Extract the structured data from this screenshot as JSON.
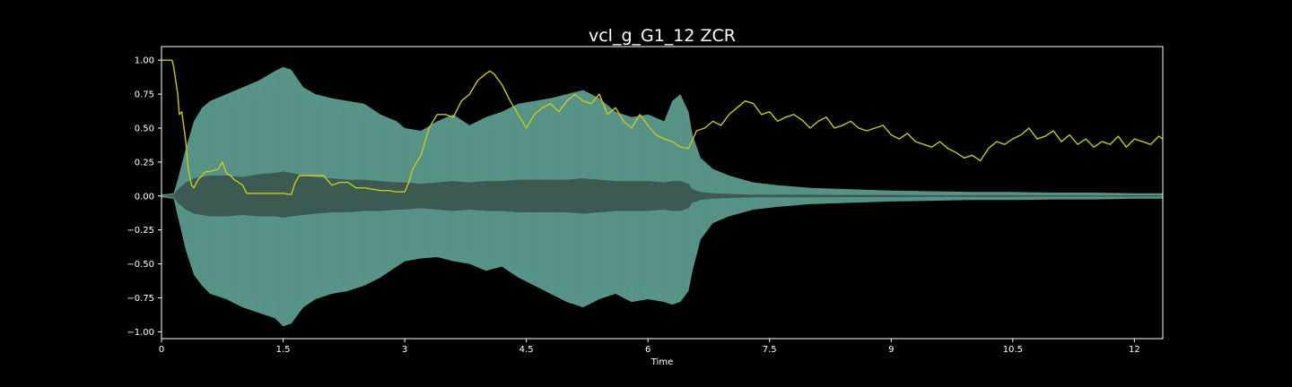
{
  "chart_data": {
    "type": "line",
    "title": "vcl_g_G1_12 ZCR",
    "xlabel": "Time",
    "ylabel": "",
    "xlim": [
      0,
      12.35
    ],
    "ylim": [
      -1.05,
      1.1
    ],
    "x_ticks": [
      0,
      1.5,
      3,
      4.5,
      6,
      7.5,
      9,
      10.5,
      12
    ],
    "x_tick_labels": [
      "0",
      "1.5",
      "3",
      "4.5",
      "6",
      "7.5",
      "9",
      "10.5",
      "12"
    ],
    "y_ticks": [
      1.0,
      0.75,
      0.5,
      0.25,
      0.0,
      -0.25,
      -0.5,
      -0.75,
      -1.0
    ],
    "y_tick_labels": [
      "1.00",
      "0.75",
      "0.50",
      "0.25",
      "0.00",
      "−0.25",
      "−0.50",
      "−0.75",
      "−1.00"
    ],
    "grid": false,
    "colors": {
      "background": "#000000",
      "axes": "#ffffff",
      "waveform_outer": "#5e9c8f",
      "waveform_inner": "#3b5a51",
      "zcr_line": "#c8c81e"
    },
    "waveform_envelope": {
      "name": "waveform",
      "x": [
        0,
        0.15,
        0.2,
        0.3,
        0.4,
        0.5,
        0.6,
        0.8,
        1.0,
        1.2,
        1.4,
        1.5,
        1.6,
        1.75,
        1.9,
        2.1,
        2.3,
        2.5,
        2.7,
        2.9,
        3.0,
        3.2,
        3.4,
        3.6,
        3.8,
        4.0,
        4.2,
        4.4,
        4.6,
        4.8,
        5.0,
        5.2,
        5.4,
        5.6,
        5.8,
        6.0,
        6.2,
        6.3,
        6.4,
        6.5,
        6.55,
        6.65,
        6.8,
        7.0,
        7.3,
        7.6,
        8.0,
        8.5,
        9.0,
        9.5,
        10.0,
        10.5,
        11.0,
        11.5,
        12.0,
        12.35
      ],
      "upper": [
        0.01,
        0.02,
        0.12,
        0.35,
        0.55,
        0.65,
        0.7,
        0.75,
        0.8,
        0.85,
        0.92,
        0.95,
        0.93,
        0.8,
        0.75,
        0.72,
        0.7,
        0.68,
        0.6,
        0.55,
        0.5,
        0.48,
        0.55,
        0.6,
        0.52,
        0.58,
        0.62,
        0.68,
        0.7,
        0.72,
        0.75,
        0.78,
        0.72,
        0.62,
        0.58,
        0.6,
        0.55,
        0.7,
        0.75,
        0.62,
        0.45,
        0.28,
        0.2,
        0.15,
        0.1,
        0.08,
        0.06,
        0.05,
        0.04,
        0.035,
        0.03,
        0.03,
        0.025,
        0.025,
        0.02,
        0.02
      ],
      "lower": [
        -0.01,
        -0.02,
        -0.15,
        -0.4,
        -0.58,
        -0.66,
        -0.72,
        -0.76,
        -0.82,
        -0.86,
        -0.9,
        -0.96,
        -0.94,
        -0.82,
        -0.76,
        -0.72,
        -0.7,
        -0.66,
        -0.6,
        -0.52,
        -0.48,
        -0.46,
        -0.45,
        -0.48,
        -0.5,
        -0.55,
        -0.52,
        -0.6,
        -0.66,
        -0.72,
        -0.78,
        -0.82,
        -0.76,
        -0.72,
        -0.78,
        -0.76,
        -0.78,
        -0.8,
        -0.78,
        -0.7,
        -0.55,
        -0.32,
        -0.2,
        -0.15,
        -0.1,
        -0.08,
        -0.06,
        -0.05,
        -0.04,
        -0.035,
        -0.03,
        -0.03,
        -0.025,
        -0.025,
        -0.02,
        -0.02
      ],
      "inner_upper": [
        0.0,
        0.01,
        0.05,
        0.1,
        0.13,
        0.14,
        0.15,
        0.15,
        0.14,
        0.16,
        0.17,
        0.18,
        0.17,
        0.15,
        0.14,
        0.13,
        0.12,
        0.12,
        0.11,
        0.1,
        0.1,
        0.09,
        0.1,
        0.11,
        0.1,
        0.11,
        0.11,
        0.12,
        0.12,
        0.12,
        0.12,
        0.13,
        0.12,
        0.11,
        0.11,
        0.11,
        0.1,
        0.11,
        0.11,
        0.09,
        0.05,
        0.03,
        0.02,
        0.015,
        0.01,
        0.01,
        0.01,
        0.008,
        0.008,
        0.006,
        0.006,
        0.006,
        0.005,
        0.005,
        0.005,
        0.005
      ],
      "inner_lower": [
        0.0,
        -0.01,
        -0.05,
        -0.1,
        -0.13,
        -0.14,
        -0.15,
        -0.15,
        -0.14,
        -0.15,
        -0.15,
        -0.16,
        -0.15,
        -0.14,
        -0.13,
        -0.12,
        -0.12,
        -0.11,
        -0.11,
        -0.1,
        -0.1,
        -0.09,
        -0.1,
        -0.11,
        -0.1,
        -0.11,
        -0.11,
        -0.12,
        -0.12,
        -0.12,
        -0.12,
        -0.13,
        -0.12,
        -0.11,
        -0.11,
        -0.11,
        -0.1,
        -0.11,
        -0.11,
        -0.09,
        -0.05,
        -0.03,
        -0.02,
        -0.015,
        -0.01,
        -0.01,
        -0.01,
        -0.008,
        -0.008,
        -0.006,
        -0.006,
        -0.006,
        -0.005,
        -0.005,
        -0.005,
        -0.005
      ]
    },
    "series": [
      {
        "name": "ZCR",
        "x": [
          0,
          0.13,
          0.15,
          0.2,
          0.22,
          0.25,
          0.3,
          0.33,
          0.37,
          0.4,
          0.45,
          0.5,
          0.55,
          0.6,
          0.7,
          0.75,
          0.8,
          0.85,
          0.9,
          1.0,
          1.05,
          1.1,
          1.2,
          1.25,
          1.3,
          1.4,
          1.5,
          1.6,
          1.65,
          1.7,
          1.8,
          1.9,
          2.0,
          2.1,
          2.2,
          2.3,
          2.4,
          2.5,
          2.6,
          2.7,
          2.8,
          2.9,
          3.0,
          3.05,
          3.1,
          3.2,
          3.3,
          3.4,
          3.5,
          3.6,
          3.7,
          3.8,
          3.9,
          4.0,
          4.05,
          4.1,
          4.2,
          4.3,
          4.4,
          4.5,
          4.6,
          4.7,
          4.8,
          4.9,
          5.0,
          5.1,
          5.2,
          5.3,
          5.4,
          5.5,
          5.6,
          5.7,
          5.8,
          5.9,
          6.0,
          6.1,
          6.2,
          6.3,
          6.4,
          6.5,
          6.6,
          6.7,
          6.8,
          6.9,
          7.0,
          7.1,
          7.2,
          7.3,
          7.4,
          7.5,
          7.6,
          7.7,
          7.8,
          7.9,
          8.0,
          8.1,
          8.2,
          8.3,
          8.4,
          8.5,
          8.6,
          8.7,
          8.8,
          8.9,
          9.0,
          9.1,
          9.2,
          9.3,
          9.4,
          9.5,
          9.6,
          9.7,
          9.8,
          9.9,
          10.0,
          10.1,
          10.2,
          10.3,
          10.4,
          10.5,
          10.6,
          10.7,
          10.8,
          10.9,
          11.0,
          11.1,
          11.2,
          11.3,
          11.4,
          11.5,
          11.6,
          11.7,
          11.8,
          11.9,
          12.0,
          12.1,
          12.2,
          12.3,
          12.35
        ],
        "values": [
          1.0,
          1.0,
          0.95,
          0.75,
          0.6,
          0.62,
          0.4,
          0.2,
          0.08,
          0.06,
          0.12,
          0.15,
          0.18,
          0.18,
          0.2,
          0.25,
          0.17,
          0.15,
          0.12,
          0.08,
          0.02,
          0.02,
          0.02,
          0.02,
          0.02,
          0.02,
          0.02,
          0.01,
          0.1,
          0.15,
          0.15,
          0.15,
          0.15,
          0.08,
          0.1,
          0.1,
          0.06,
          0.06,
          0.05,
          0.04,
          0.04,
          0.03,
          0.03,
          0.1,
          0.2,
          0.3,
          0.5,
          0.6,
          0.6,
          0.58,
          0.7,
          0.75,
          0.85,
          0.9,
          0.92,
          0.9,
          0.82,
          0.7,
          0.6,
          0.5,
          0.6,
          0.65,
          0.68,
          0.62,
          0.7,
          0.75,
          0.7,
          0.68,
          0.75,
          0.6,
          0.65,
          0.55,
          0.5,
          0.6,
          0.52,
          0.45,
          0.42,
          0.4,
          0.36,
          0.35,
          0.48,
          0.5,
          0.55,
          0.52,
          0.6,
          0.65,
          0.7,
          0.68,
          0.6,
          0.62,
          0.55,
          0.58,
          0.6,
          0.56,
          0.5,
          0.55,
          0.58,
          0.5,
          0.52,
          0.55,
          0.5,
          0.48,
          0.5,
          0.52,
          0.45,
          0.42,
          0.46,
          0.4,
          0.38,
          0.36,
          0.4,
          0.35,
          0.32,
          0.28,
          0.3,
          0.26,
          0.35,
          0.4,
          0.38,
          0.42,
          0.45,
          0.5,
          0.42,
          0.44,
          0.48,
          0.4,
          0.45,
          0.38,
          0.42,
          0.36,
          0.4,
          0.38,
          0.44,
          0.36,
          0.42,
          0.4,
          0.38,
          0.44,
          0.42
        ]
      }
    ]
  }
}
